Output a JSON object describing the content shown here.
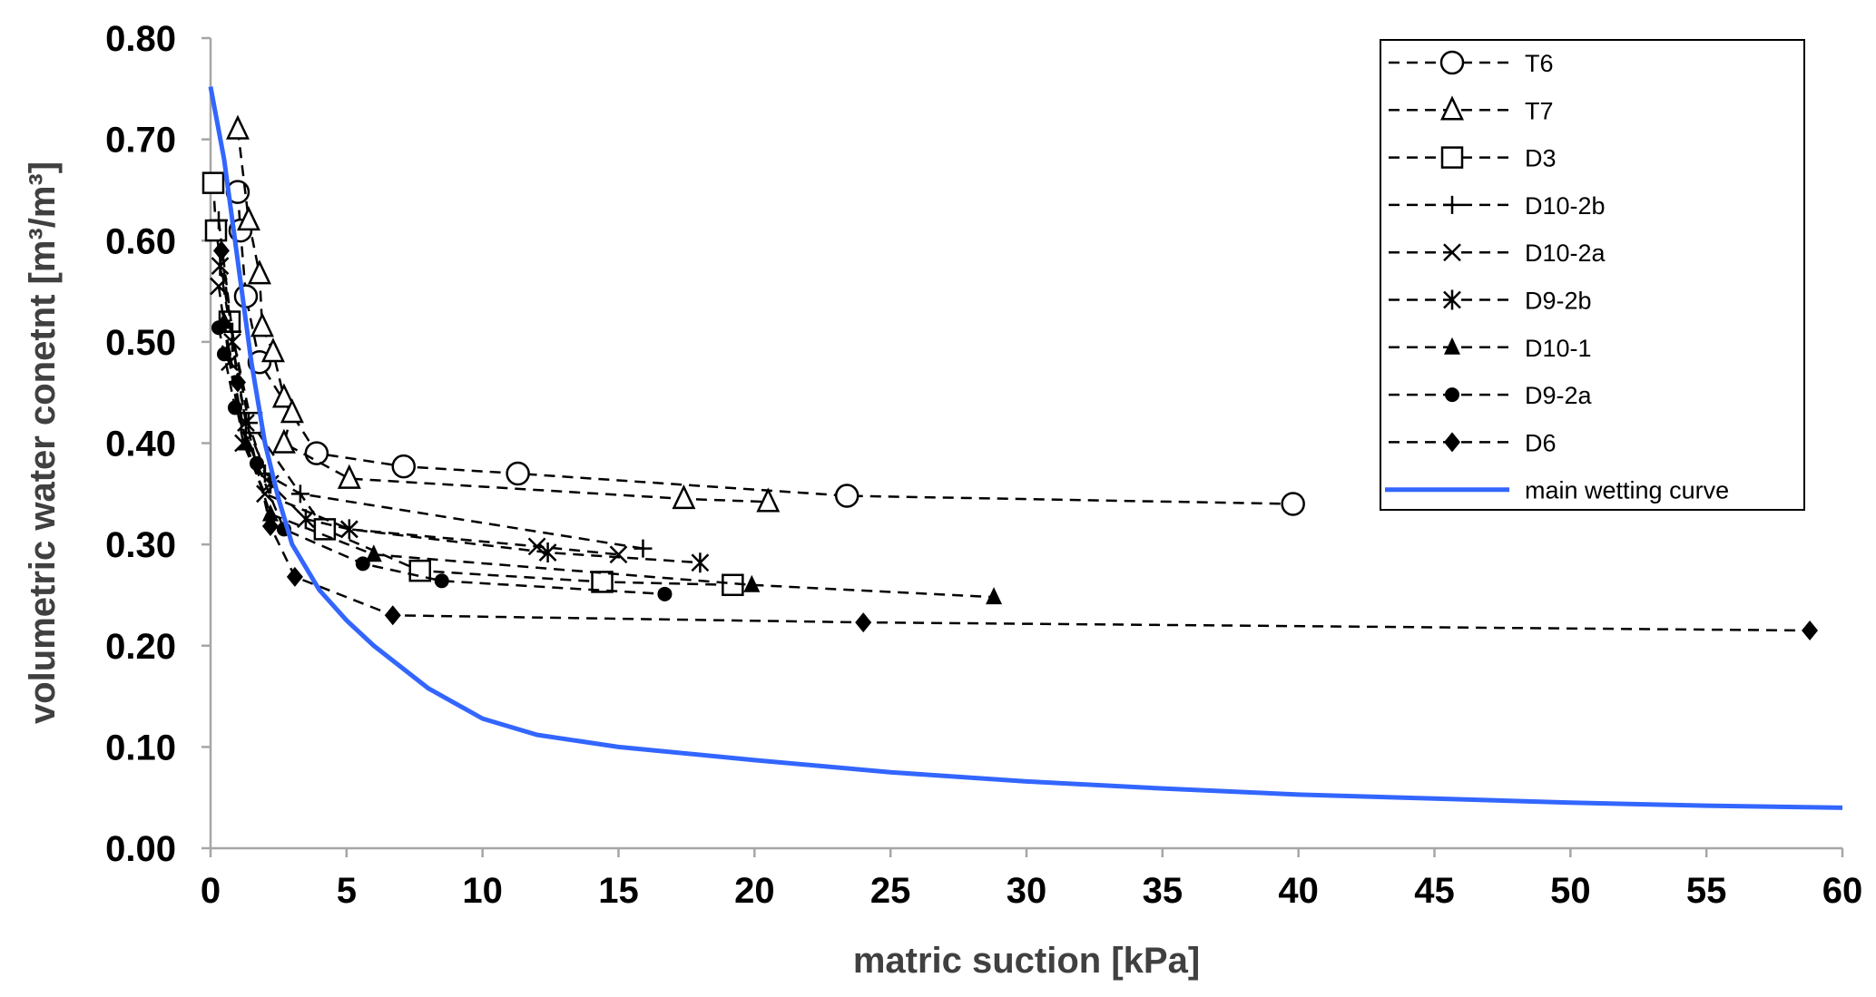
{
  "chart_data": {
    "type": "scatter",
    "xlabel": "matric suction [kPa]",
    "ylabel": "volumetric water conetnt [m³/m³]",
    "xlim": [
      0,
      60
    ],
    "ylim": [
      0,
      0.8
    ],
    "xticks": [
      "0",
      "5",
      "10",
      "15",
      "20",
      "25",
      "30",
      "35",
      "40",
      "45",
      "50",
      "55",
      "60"
    ],
    "yticks": [
      "0.00",
      "0.10",
      "0.20",
      "0.30",
      "0.40",
      "0.50",
      "0.60",
      "0.70",
      "0.80"
    ],
    "grid": false,
    "legend_position": "top-right",
    "series": [
      {
        "name": "T6",
        "marker": "circle-open",
        "line": "dashed",
        "x": [
          1.0,
          1.1,
          1.3,
          1.8,
          3.9,
          7.1,
          11.3,
          23.4,
          39.8
        ],
        "y": [
          0.648,
          0.61,
          0.545,
          0.48,
          0.39,
          0.377,
          0.37,
          0.348,
          0.34
        ]
      },
      {
        "name": "T7",
        "marker": "triangle-open",
        "line": "dashed",
        "x": [
          1.0,
          1.4,
          1.8,
          1.9,
          2.3,
          2.7,
          3.0,
          2.7,
          5.1,
          17.4,
          20.5
        ],
        "y": [
          0.71,
          0.62,
          0.567,
          0.515,
          0.49,
          0.445,
          0.43,
          0.4,
          0.365,
          0.345,
          0.342
        ]
      },
      {
        "name": "D3",
        "marker": "square-open",
        "line": "dashed",
        "x": [
          0.1,
          0.2,
          0.7,
          1.5,
          4.2,
          7.7,
          14.4,
          19.2
        ],
        "y": [
          0.657,
          0.61,
          0.52,
          0.42,
          0.315,
          0.274,
          0.263,
          0.26
        ]
      },
      {
        "name": "D10-2b",
        "marker": "plus",
        "line": "dashed",
        "x": [
          0.3,
          0.8,
          1.4,
          2.0,
          3.3,
          15.9
        ],
        "y": [
          0.62,
          0.51,
          0.42,
          0.37,
          0.35,
          0.296
        ]
      },
      {
        "name": "D10-2a",
        "marker": "x",
        "line": "dashed",
        "x": [
          0.3,
          0.7,
          1.2,
          2.0,
          5.1,
          12.0,
          15.0
        ],
        "y": [
          0.555,
          0.48,
          0.4,
          0.35,
          0.315,
          0.298,
          0.29
        ]
      },
      {
        "name": "D9-2b",
        "marker": "asterisk",
        "line": "dashed",
        "x": [
          0.35,
          0.8,
          1.3,
          2.2,
          3.5,
          5.1,
          12.4,
          18.0
        ],
        "y": [
          0.575,
          0.5,
          0.42,
          0.36,
          0.325,
          0.315,
          0.292,
          0.282
        ]
      },
      {
        "name": "D10-1",
        "marker": "triangle-filled",
        "line": "dashed",
        "x": [
          0.5,
          1.3,
          2.2,
          6.0,
          19.9,
          28.8
        ],
        "y": [
          0.52,
          0.4,
          0.33,
          0.29,
          0.26,
          0.248
        ]
      },
      {
        "name": "D9-2a",
        "marker": "circle-filled",
        "line": "dashed",
        "x": [
          0.3,
          0.5,
          0.9,
          1.7,
          2.7,
          5.6,
          8.5,
          16.7
        ],
        "y": [
          0.514,
          0.488,
          0.435,
          0.38,
          0.315,
          0.281,
          0.264,
          0.251
        ]
      },
      {
        "name": "D6",
        "marker": "diamond-filled",
        "line": "dashed",
        "x": [
          0.4,
          1.0,
          2.2,
          3.1,
          6.7,
          24.0,
          58.8
        ],
        "y": [
          0.59,
          0.46,
          0.318,
          0.268,
          0.23,
          0.223,
          0.215
        ]
      },
      {
        "name": "main wetting curve",
        "marker": "none",
        "line": "solid",
        "color": "#3366ff",
        "x": [
          0,
          0.5,
          1,
          1.5,
          2,
          2.5,
          3,
          4,
          5,
          6,
          8,
          10,
          12,
          15,
          20,
          25,
          30,
          35,
          40,
          45,
          50,
          55,
          60
        ],
        "y": [
          0.752,
          0.68,
          0.58,
          0.48,
          0.4,
          0.345,
          0.3,
          0.255,
          0.225,
          0.2,
          0.158,
          0.128,
          0.112,
          0.1,
          0.087,
          0.075,
          0.066,
          0.059,
          0.053,
          0.049,
          0.045,
          0.042,
          0.04
        ]
      }
    ]
  }
}
